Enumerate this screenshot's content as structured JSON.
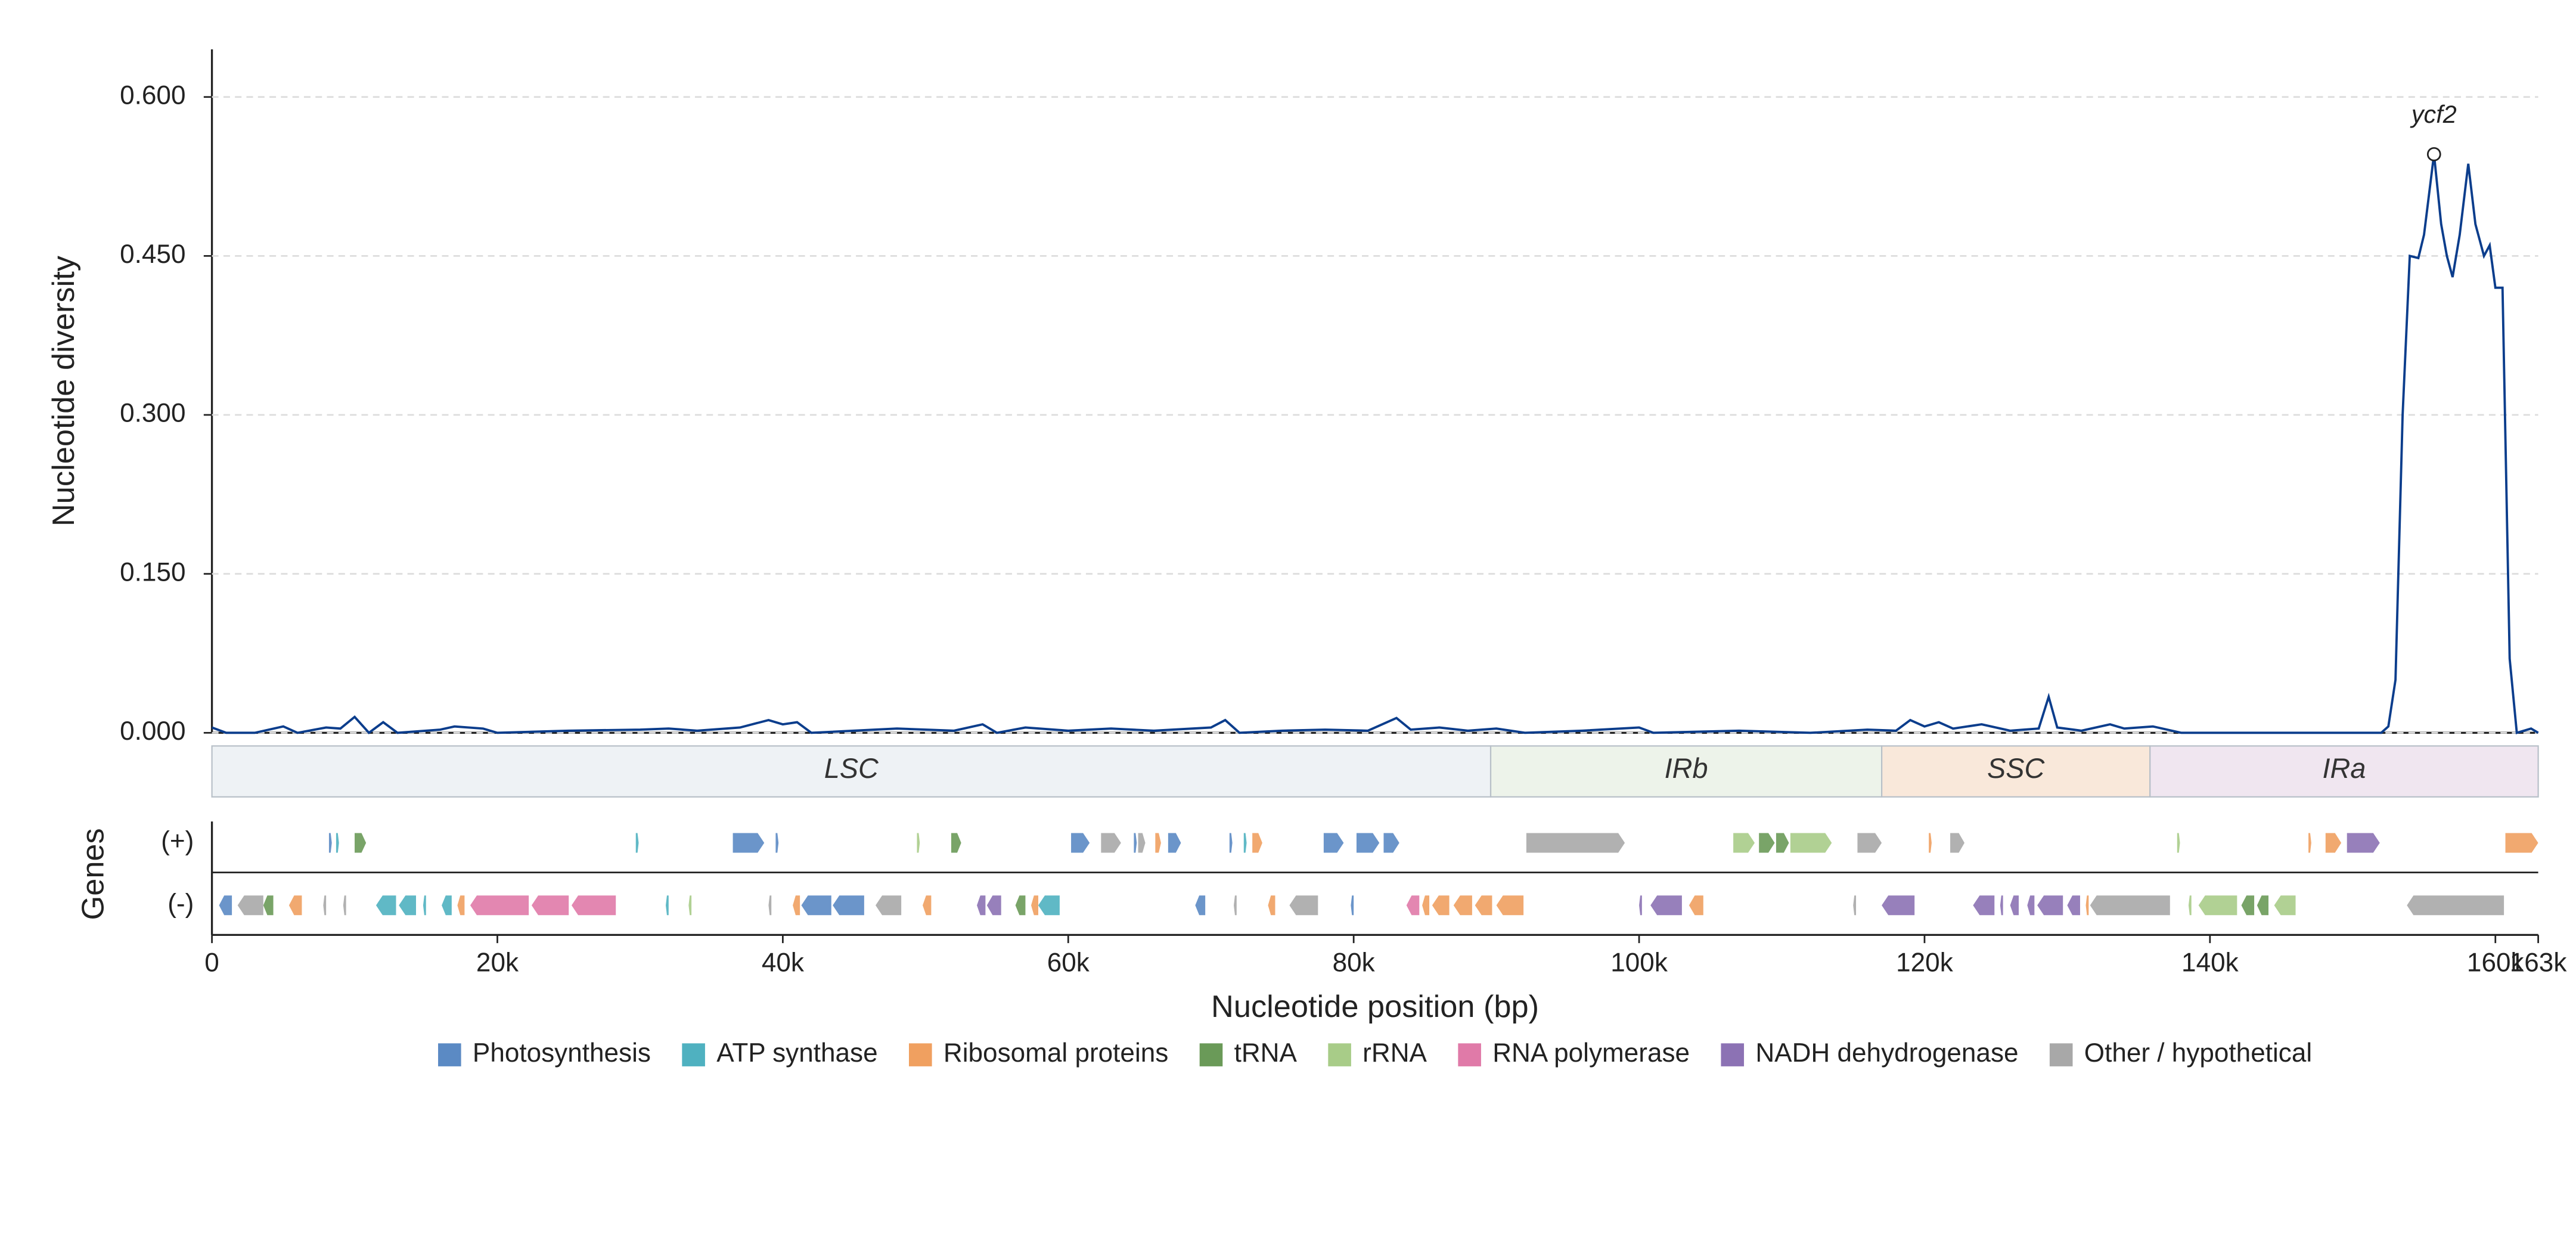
{
  "chart_data": {
    "type": "line",
    "y_label": "Nucleotide diversity",
    "x_label": "Nucleotide position (bp)",
    "gene_label": "Genes",
    "strand_labels": [
      "(+)",
      "(-)"
    ],
    "xlim": [
      0,
      163000
    ],
    "xticks": [
      0,
      {
        "value": 20000,
        "label": "20k"
      },
      {
        "value": 40000,
        "label": "40k"
      },
      {
        "value": 60000,
        "label": "60k"
      },
      {
        "value": 80000,
        "label": "80k"
      },
      {
        "value": 100000,
        "label": "100k"
      },
      {
        "value": 120000,
        "label": "120k"
      },
      {
        "value": 140000,
        "label": "140k"
      },
      {
        "value": 160000,
        "label": "160k"
      },
      {
        "value": 163000,
        "label": "163k"
      }
    ],
    "ylim": [
      0,
      0.645
    ],
    "yticks": [
      {
        "value": 0,
        "label": "0.000"
      },
      {
        "value": 0.15,
        "label": "0.150"
      },
      {
        "value": 0.3,
        "label": "0.300"
      },
      {
        "value": 0.45,
        "label": "0.450"
      },
      {
        "value": 0.6,
        "label": "0.600"
      }
    ],
    "grid": true,
    "series": [
      {
        "color": "#0b3d8c",
        "x": [
          0,
          1000,
          3000,
          5000,
          6000,
          8000,
          9000,
          10000,
          11000,
          12000,
          13000,
          16000,
          17000,
          19000,
          20000,
          25000,
          30000,
          32000,
          34000,
          37000,
          39000,
          40000,
          41000,
          42000,
          48000,
          52000,
          54000,
          55000,
          57000,
          60000,
          63000,
          66000,
          70000,
          71000,
          72000,
          75000,
          78000,
          81000,
          83000,
          84000,
          86000,
          88000,
          90000,
          92000,
          96000,
          100000,
          101000,
          107000,
          112000,
          116000,
          118000,
          119000,
          120000,
          121000,
          122000,
          124000,
          126000,
          128000,
          128700,
          129300,
          131000,
          133000,
          134000,
          136000,
          138000,
          145000,
          152000,
          152500,
          153000,
          153500,
          154000,
          154600,
          155000,
          155700,
          156200,
          156600,
          157000,
          157500,
          158100,
          158600,
          159200,
          159600,
          160000,
          160500,
          161000,
          161500,
          162500,
          163000
        ],
        "values": [
          0.005,
          0,
          0,
          0.006,
          0,
          0.005,
          0.004,
          0.015,
          0,
          0.01,
          0,
          0.003,
          0.006,
          0.004,
          0,
          0.002,
          0.003,
          0.004,
          0.002,
          0.005,
          0.012,
          0.008,
          0.01,
          0,
          0.004,
          0.002,
          0.008,
          0,
          0.005,
          0.002,
          0.004,
          0.002,
          0.005,
          0.012,
          0,
          0.002,
          0.003,
          0.002,
          0.014,
          0.003,
          0.005,
          0.002,
          0.004,
          0,
          0.002,
          0.005,
          0,
          0.002,
          0,
          0.003,
          0.002,
          0.012,
          0.006,
          0.01,
          0.004,
          0.008,
          0.002,
          0.004,
          0.034,
          0.005,
          0.002,
          0.008,
          0.004,
          0.006,
          0,
          0,
          0,
          0.006,
          0.05,
          0.3,
          0.45,
          0.448,
          0.47,
          0.546,
          0.48,
          0.45,
          0.43,
          0.47,
          0.537,
          0.48,
          0.45,
          0.46,
          0.42,
          0.42,
          0.07,
          0,
          0.004,
          0
        ]
      }
    ],
    "annotations": [
      {
        "text": "ycf2",
        "x": 155700,
        "y": 0.546
      }
    ],
    "regions": [
      {
        "label": "LSC",
        "start": 0,
        "end": 89600,
        "color": "#eef2f5"
      },
      {
        "label": "IRb",
        "start": 89600,
        "end": 117000,
        "color": "#edf3ea"
      },
      {
        "label": "SSC",
        "start": 117000,
        "end": 135800,
        "color": "#f9e8da"
      },
      {
        "label": "IRa",
        "start": 135800,
        "end": 163000,
        "color": "#f0e6f0"
      }
    ],
    "categories": [
      {
        "name": "Photosynthesis",
        "color": "#5b8ac4"
      },
      {
        "name": "ATP synthase",
        "color": "#4fb1c0"
      },
      {
        "name": "Ribosomal proteins",
        "color": "#f0a060"
      },
      {
        "name": "tRNA",
        "color": "#6a9a58"
      },
      {
        "name": "rRNA",
        "color": "#a8cc88"
      },
      {
        "name": "RNA polymerase",
        "color": "#e07aa8"
      },
      {
        "name": "NADH dehydrogenase",
        "color": "#8c72b4"
      },
      {
        "name": "Other / hypothetical",
        "color": "#a8a8a8"
      }
    ],
    "genes": [
      [
        8200,
        8400,
        1,
        0
      ],
      [
        8700,
        8900,
        1,
        1
      ],
      [
        10000,
        10800,
        1,
        3
      ],
      [
        29700,
        29900,
        1,
        1
      ],
      [
        36500,
        38700,
        1,
        0
      ],
      [
        39500,
        39700,
        1,
        0
      ],
      [
        49400,
        49600,
        1,
        4
      ],
      [
        51800,
        52500,
        1,
        3
      ],
      [
        60200,
        61500,
        1,
        0
      ],
      [
        62300,
        63700,
        1,
        7
      ],
      [
        64600,
        64800,
        1,
        0
      ],
      [
        64900,
        65400,
        1,
        7
      ],
      [
        66100,
        66500,
        1,
        2
      ],
      [
        67000,
        67900,
        1,
        0
      ],
      [
        71300,
        71500,
        1,
        0
      ],
      [
        72300,
        72500,
        1,
        1
      ],
      [
        72900,
        73600,
        1,
        2
      ],
      [
        77900,
        79300,
        1,
        0
      ],
      [
        80200,
        81800,
        1,
        0
      ],
      [
        82100,
        83200,
        1,
        0
      ],
      [
        92100,
        99000,
        1,
        7
      ],
      [
        106600,
        108100,
        1,
        4
      ],
      [
        108400,
        109500,
        1,
        3
      ],
      [
        109600,
        110500,
        1,
        3
      ],
      [
        110600,
        113500,
        1,
        4
      ],
      [
        115300,
        117000,
        1,
        7
      ],
      [
        120300,
        120500,
        1,
        2
      ],
      [
        121800,
        122800,
        1,
        7
      ],
      [
        137700,
        137900,
        1,
        4
      ],
      [
        146900,
        147100,
        1,
        2
      ],
      [
        148100,
        149200,
        1,
        2
      ],
      [
        149600,
        151900,
        1,
        6
      ],
      [
        160700,
        163000,
        1,
        2
      ],
      [
        500,
        1400,
        -1,
        0
      ],
      [
        1800,
        3600,
        -1,
        7
      ],
      [
        3600,
        4300,
        -1,
        3
      ],
      [
        5400,
        6300,
        -1,
        2
      ],
      [
        7800,
        8000,
        -1,
        7
      ],
      [
        9200,
        9400,
        -1,
        7
      ],
      [
        11500,
        12900,
        -1,
        1
      ],
      [
        13100,
        14300,
        -1,
        1
      ],
      [
        14800,
        15000,
        -1,
        1
      ],
      [
        16100,
        16800,
        -1,
        1
      ],
      [
        17200,
        17700,
        -1,
        2
      ],
      [
        18100,
        22200,
        -1,
        5
      ],
      [
        22400,
        25000,
        -1,
        5
      ],
      [
        25200,
        28300,
        -1,
        5
      ],
      [
        31800,
        32000,
        -1,
        1
      ],
      [
        33400,
        33600,
        -1,
        4
      ],
      [
        39000,
        39200,
        -1,
        7
      ],
      [
        40700,
        41200,
        -1,
        2
      ],
      [
        41300,
        43400,
        -1,
        0
      ],
      [
        43500,
        45700,
        -1,
        0
      ],
      [
        46500,
        48300,
        -1,
        7
      ],
      [
        49800,
        50400,
        -1,
        2
      ],
      [
        53600,
        54200,
        -1,
        6
      ],
      [
        54300,
        55300,
        -1,
        6
      ],
      [
        56300,
        57000,
        -1,
        3
      ],
      [
        57400,
        57900,
        -1,
        2
      ],
      [
        57900,
        59400,
        -1,
        1
      ],
      [
        68900,
        69600,
        -1,
        0
      ],
      [
        71600,
        71800,
        -1,
        7
      ],
      [
        74000,
        74500,
        -1,
        2
      ],
      [
        75500,
        77500,
        -1,
        7
      ],
      [
        79800,
        80000,
        -1,
        0
      ],
      [
        83700,
        84600,
        -1,
        5
      ],
      [
        84800,
        85300,
        -1,
        2
      ],
      [
        85500,
        86700,
        -1,
        2
      ],
      [
        87000,
        88300,
        -1,
        2
      ],
      [
        88500,
        89700,
        -1,
        2
      ],
      [
        90000,
        91900,
        -1,
        2
      ],
      [
        100000,
        100200,
        -1,
        6
      ],
      [
        100800,
        103000,
        -1,
        6
      ],
      [
        103500,
        104500,
        -1,
        2
      ],
      [
        115000,
        115200,
        -1,
        7
      ],
      [
        117000,
        119300,
        -1,
        6
      ],
      [
        123400,
        124900,
        -1,
        6
      ],
      [
        125300,
        125500,
        -1,
        6
      ],
      [
        126000,
        126600,
        -1,
        6
      ],
      [
        127200,
        127700,
        -1,
        6
      ],
      [
        127900,
        129700,
        -1,
        6
      ],
      [
        130000,
        130900,
        -1,
        6
      ],
      [
        131300,
        131500,
        -1,
        2
      ],
      [
        131600,
        137200,
        -1,
        7
      ],
      [
        138500,
        138700,
        -1,
        4
      ],
      [
        139200,
        141900,
        -1,
        4
      ],
      [
        142200,
        143100,
        -1,
        3
      ],
      [
        143300,
        144100,
        -1,
        3
      ],
      [
        144500,
        146000,
        -1,
        4
      ],
      [
        153800,
        160600,
        -1,
        7
      ]
    ]
  }
}
